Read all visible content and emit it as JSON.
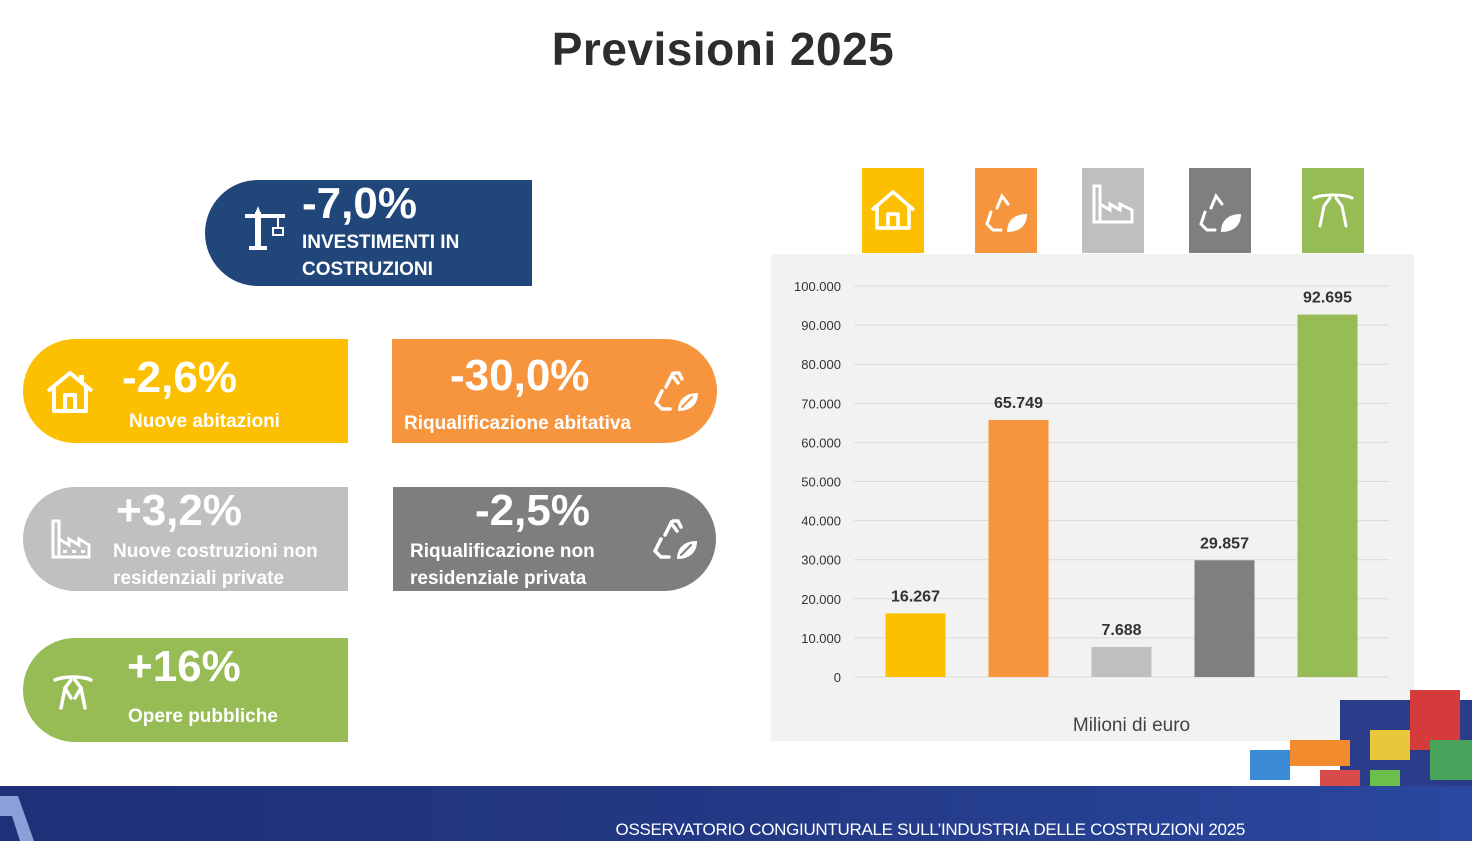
{
  "title": "Previsioni 2025",
  "kpis": {
    "main": {
      "value": "-7,0%",
      "label_line1": "INVESTIMENTI IN",
      "label_line2": "COSTRUZIONI",
      "color": "#21467a",
      "icon": "crane-icon"
    },
    "new_housing": {
      "value": "-2,6%",
      "label": "Nuove abitazioni",
      "color": "#fcc000",
      "icon": "house-icon"
    },
    "housing_renovation": {
      "value": "-30,0%",
      "label": "Riqualificazione abitativa",
      "color": "#f7953e",
      "icon": "recycle-leaf-icon"
    },
    "new_nonres": {
      "value": "+3,2%",
      "label_line1": "Nuove costruzioni non",
      "label_line2": "residenziali private",
      "color": "#c0c0c0",
      "icon": "factory-icon"
    },
    "nonres_renovation": {
      "value": "-2,5%",
      "label_line1": "Riqualificazione non",
      "label_line2": "residenziale privata",
      "color": "#7e7e7e",
      "icon": "recycle-leaf-icon"
    },
    "public_works": {
      "value": "+16%",
      "label": "Opere pubbliche",
      "color": "#97bb55",
      "icon": "bridge-icon"
    }
  },
  "chart_data": {
    "type": "bar",
    "categories": [
      "Nuove abitazioni",
      "Riqualificazione abitativa",
      "Nuove costruzioni non residenziali private",
      "Riqualificazione non residenziale privata",
      "Opere pubbliche"
    ],
    "values": [
      16267,
      65749,
      7688,
      29857,
      92695
    ],
    "value_labels": [
      "16.267",
      "65.749",
      "7.688",
      "29.857",
      "92.695"
    ],
    "colors": [
      "#fcc000",
      "#f7953e",
      "#bfbfbf",
      "#7f7f7f",
      "#97bb55"
    ],
    "xlabel": "Milioni di euro",
    "ylabel": "",
    "ylim": [
      0,
      100000
    ],
    "yticks": [
      0,
      10000,
      20000,
      30000,
      40000,
      50000,
      60000,
      70000,
      80000,
      90000,
      100000
    ],
    "ytick_labels": [
      "0",
      "10.000",
      "20.000",
      "30.000",
      "40.000",
      "50.000",
      "60.000",
      "70.000",
      "80.000",
      "90.000",
      "100.000"
    ],
    "grid": true,
    "legend_icons": [
      "house-icon",
      "recycle-leaf-icon",
      "factory-icon",
      "recycle-leaf-icon",
      "bridge-icon"
    ]
  },
  "footer": {
    "text": "OSSERVATORIO CONGIUNTURALE SULL’INDUSTRIA DELLE COSTRUZIONI 2025"
  }
}
